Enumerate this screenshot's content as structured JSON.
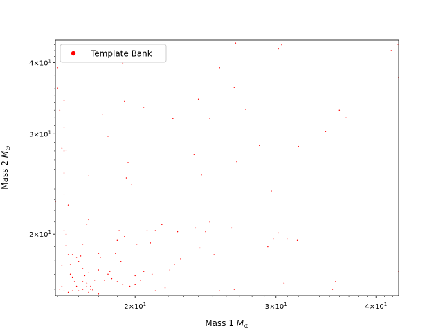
{
  "chart_data": {
    "type": "scatter",
    "title": "",
    "xlabel": {
      "text": "Mass 1 ",
      "sym": "M",
      "sub": "⊙"
    },
    "ylabel": {
      "text": "Mass 2 ",
      "sym": "M",
      "sub": "⊙"
    },
    "x_scale": "log",
    "y_scale": "log",
    "xlim": [
      15.9,
      42.7
    ],
    "ylim": [
      15.6,
      43.8
    ],
    "grid": false,
    "legend": {
      "position": "top-left"
    },
    "x_ticks": [
      {
        "value": 20,
        "base": "2",
        "mult": "×10",
        "exp": "1"
      },
      {
        "value": 30,
        "base": "3",
        "mult": "×10",
        "exp": "1"
      },
      {
        "value": 40,
        "base": "4",
        "mult": "×10",
        "exp": "1"
      }
    ],
    "y_ticks": [
      {
        "value": 20,
        "base": "2",
        "mult": "×10",
        "exp": "1"
      },
      {
        "value": 30,
        "base": "3",
        "mult": "×10",
        "exp": "1"
      },
      {
        "value": 40,
        "base": "4",
        "mult": "×10",
        "exp": "1"
      }
    ],
    "series": [
      {
        "name": "Template Bank",
        "color": "#ff0000",
        "points": [
          [
            16.0,
            39.2
          ],
          [
            16.0,
            36.1
          ],
          [
            16.1,
            33.0
          ],
          [
            16.3,
            34.3
          ],
          [
            16.3,
            30.8
          ],
          [
            16.3,
            28.0
          ],
          [
            16.2,
            28.3
          ],
          [
            16.4,
            28.1
          ],
          [
            16.3,
            25.6
          ],
          [
            16.3,
            23.5
          ],
          [
            16.5,
            22.5
          ],
          [
            15.9,
            22.8
          ],
          [
            16.3,
            20.3
          ],
          [
            16.4,
            20.0
          ],
          [
            16.4,
            19.1
          ],
          [
            16.5,
            18.4
          ],
          [
            16.2,
            17.6
          ],
          [
            16.7,
            18.4
          ],
          [
            16.9,
            18.2
          ],
          [
            17.0,
            17.9
          ],
          [
            17.1,
            18.3
          ],
          [
            16.6,
            17.7
          ],
          [
            17.2,
            17.4
          ],
          [
            16.6,
            17.0
          ],
          [
            16.7,
            16.8
          ],
          [
            16.8,
            16.5
          ],
          [
            16.9,
            16.2
          ],
          [
            16.2,
            16.2
          ],
          [
            16.1,
            16.0
          ],
          [
            16.3,
            15.9
          ],
          [
            16.5,
            15.8
          ],
          [
            16.7,
            15.9
          ],
          [
            17.0,
            15.9
          ],
          [
            17.2,
            16.0
          ],
          [
            17.5,
            15.8
          ],
          [
            17.7,
            15.9
          ],
          [
            18.0,
            15.7
          ],
          [
            17.4,
            16.4
          ],
          [
            17.8,
            16.6
          ],
          [
            17.3,
            16.9
          ],
          [
            17.5,
            17.1
          ],
          [
            17.2,
            16.5
          ],
          [
            17.4,
            16.2
          ],
          [
            17.6,
            16.0
          ],
          [
            18.3,
            16.6
          ],
          [
            18.7,
            16.7
          ],
          [
            18.5,
            17.0
          ],
          [
            18.0,
            17.3
          ],
          [
            18.6,
            17.2
          ],
          [
            19.0,
            16.5
          ],
          [
            19.3,
            16.3
          ],
          [
            19.7,
            16.2
          ],
          [
            20.0,
            16.3
          ],
          [
            20.3,
            16.6
          ],
          [
            20.0,
            16.9
          ],
          [
            20.5,
            17.2
          ],
          [
            21.0,
            17.0
          ],
          [
            21.2,
            15.9
          ],
          [
            21.8,
            16.1
          ],
          [
            22.1,
            17.3
          ],
          [
            22.4,
            17.7
          ],
          [
            22.8,
            18.1
          ],
          [
            17.2,
            19.2
          ],
          [
            17.4,
            20.8
          ],
          [
            17.5,
            21.2
          ],
          [
            17.7,
            16.0
          ],
          [
            18.0,
            18.5
          ],
          [
            18.1,
            18.2
          ],
          [
            18.9,
            18.5
          ],
          [
            19.2,
            17.9
          ],
          [
            19.1,
            20.3
          ],
          [
            19.0,
            19.5
          ],
          [
            19.4,
            19.8
          ],
          [
            20.1,
            19.2
          ],
          [
            20.7,
            20.3
          ],
          [
            20.9,
            19.3
          ],
          [
            21.2,
            20.3
          ],
          [
            21.6,
            20.8
          ],
          [
            22.6,
            20.2
          ],
          [
            23.8,
            20.5
          ],
          [
            24.1,
            18.9
          ],
          [
            24.5,
            20.2
          ],
          [
            24.8,
            21.0
          ],
          [
            25.1,
            18.4
          ],
          [
            25.5,
            15.9
          ],
          [
            26.4,
            20.5
          ],
          [
            26.6,
            16.0
          ],
          [
            29.3,
            19.0
          ],
          [
            29.8,
            19.6
          ],
          [
            30.2,
            20.1
          ],
          [
            31.0,
            19.6
          ],
          [
            31.9,
            19.5
          ],
          [
            32.0,
            28.5
          ],
          [
            30.7,
            16.4
          ],
          [
            35.3,
            16.0
          ],
          [
            35.6,
            16.5
          ],
          [
            19.3,
            39.9
          ],
          [
            19.4,
            34.2
          ],
          [
            19.5,
            25.1
          ],
          [
            19.6,
            26.7
          ],
          [
            19.8,
            24.4
          ],
          [
            20.5,
            33.4
          ],
          [
            22.3,
            31.9
          ],
          [
            24.0,
            34.5
          ],
          [
            23.7,
            27.6
          ],
          [
            24.2,
            25.4
          ],
          [
            24.8,
            31.9
          ],
          [
            25.5,
            39.2
          ],
          [
            26.6,
            36.2
          ],
          [
            26.8,
            26.8
          ],
          [
            27.5,
            33.1
          ],
          [
            28.6,
            28.6
          ],
          [
            29.6,
            23.8
          ],
          [
            30.2,
            42.3
          ],
          [
            30.5,
            43.0
          ],
          [
            34.6,
            30.3
          ],
          [
            36.0,
            33.0
          ],
          [
            36.7,
            32.0
          ],
          [
            41.8,
            42.0
          ],
          [
            42.6,
            43.1
          ],
          [
            42.7,
            37.7
          ],
          [
            42.7,
            17.2
          ],
          [
            18.2,
            32.5
          ],
          [
            18.5,
            29.7
          ],
          [
            17.5,
            25.3
          ],
          [
            26.7,
            43.3
          ],
          [
            17.6,
            16.2
          ]
        ]
      }
    ]
  }
}
